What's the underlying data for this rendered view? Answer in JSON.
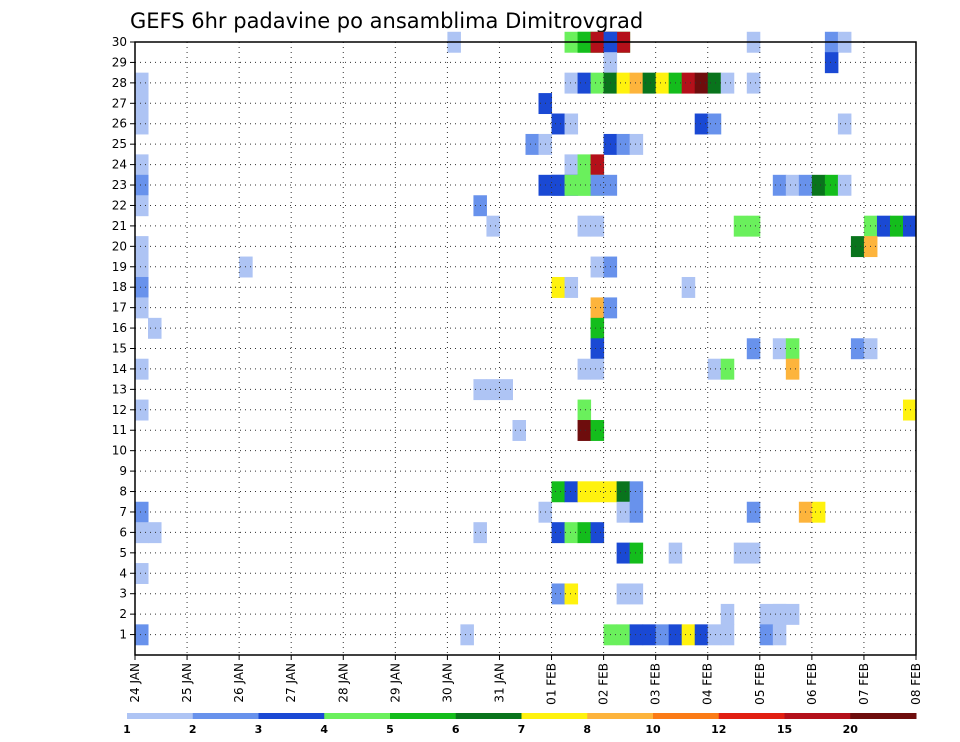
{
  "chart_data": {
    "type": "heatmap",
    "title": "GEFS 6hr padavine po ansamblima Dimitrovgrad",
    "x_tick_labels": [
      "24 JAN",
      "25 JAN",
      "26 JAN",
      "27 JAN",
      "28 JAN",
      "29 JAN",
      "30 JAN",
      "31 JAN",
      "01 FEB",
      "02 FEB",
      "03 FEB",
      "04 FEB",
      "05 FEB",
      "06 FEB",
      "07 FEB",
      "08 FEB"
    ],
    "y_tick_labels": [
      "1",
      "2",
      "3",
      "4",
      "5",
      "6",
      "7",
      "8",
      "9",
      "10",
      "11",
      "12",
      "13",
      "14",
      "15",
      "16",
      "17",
      "18",
      "19",
      "20",
      "21",
      "22",
      "23",
      "24",
      "25",
      "26",
      "27",
      "28",
      "29",
      "30"
    ],
    "x_range_days": [
      0,
      15
    ],
    "y_range": [
      0,
      30
    ],
    "grid": true,
    "colorbar": {
      "labels": [
        "1",
        "2",
        "3",
        "4",
        "5",
        "6",
        "7",
        "8",
        "10",
        "12",
        "15",
        "20"
      ],
      "colors": [
        "#aec4f4",
        "#6892ec",
        "#1a49d4",
        "#6af05c",
        "#14bd1c",
        "#09741c",
        "#fff20e",
        "#fdb43c",
        "#fb7b16",
        "#e11f12",
        "#b4101a",
        "#6e0d0d"
      ]
    },
    "cells": [
      [
        30,
        6,
        1,
        1
      ],
      [
        30,
        8.25,
        2,
        4
      ],
      [
        30,
        8.5,
        4,
        5
      ],
      [
        30,
        8.75,
        3,
        11
      ],
      [
        30,
        9,
        1,
        3
      ],
      [
        30,
        11.75,
        1,
        1
      ],
      [
        30,
        13.25,
        1,
        2
      ],
      [
        30,
        13.5,
        1,
        1
      ],
      [
        29,
        9,
        1,
        1
      ],
      [
        29,
        13.25,
        1,
        3
      ],
      [
        28,
        0,
        1,
        1
      ],
      [
        28,
        8.25,
        1,
        1
      ],
      [
        28,
        8.5,
        1,
        3
      ],
      [
        28,
        8.75,
        1,
        4
      ],
      [
        28,
        9,
        1,
        6
      ],
      [
        28,
        9.25,
        1,
        7
      ],
      [
        28,
        9.5,
        1,
        8
      ],
      [
        28,
        9.75,
        1,
        6
      ],
      [
        28,
        10,
        1,
        7
      ],
      [
        28,
        10.25,
        1,
        5
      ],
      [
        28,
        10.5,
        1,
        11
      ],
      [
        28,
        10.75,
        1,
        12
      ],
      [
        28,
        11,
        1,
        6
      ],
      [
        28,
        11.25,
        1,
        1
      ],
      [
        28,
        11.75,
        1,
        1
      ],
      [
        27,
        0,
        1,
        1
      ],
      [
        27,
        7.75,
        1,
        3
      ],
      [
        26,
        0,
        1,
        1
      ],
      [
        26,
        8,
        1,
        3
      ],
      [
        26,
        8.25,
        1,
        1
      ],
      [
        26,
        10.75,
        1,
        3
      ],
      [
        26,
        11,
        1,
        2
      ],
      [
        26,
        13.5,
        1,
        1
      ],
      [
        25,
        7.5,
        1,
        2
      ],
      [
        25,
        7.75,
        1,
        1
      ],
      [
        25,
        9,
        1,
        3
      ],
      [
        25,
        9.25,
        1,
        2
      ],
      [
        25,
        9.5,
        1,
        1
      ],
      [
        24,
        0,
        1,
        1
      ],
      [
        24,
        8.25,
        1,
        1
      ],
      [
        24,
        8.5,
        1,
        4
      ],
      [
        24,
        8.75,
        1,
        11
      ],
      [
        23,
        0,
        1,
        2
      ],
      [
        23,
        7.75,
        2,
        3
      ],
      [
        23,
        8,
        2,
        3
      ],
      [
        23,
        8.25,
        2,
        4
      ],
      [
        23,
        8.5,
        2,
        4
      ],
      [
        23,
        8.75,
        2,
        2
      ],
      [
        23,
        12.25,
        1,
        2
      ],
      [
        23,
        12.5,
        1,
        1
      ],
      [
        23,
        12.75,
        1,
        2
      ],
      [
        23,
        13,
        1,
        6
      ],
      [
        23,
        13.25,
        1,
        5
      ],
      [
        23,
        13.5,
        1,
        1
      ],
      [
        22,
        0,
        1,
        1
      ],
      [
        22,
        6.5,
        1,
        2
      ],
      [
        21,
        6.75,
        1,
        1
      ],
      [
        21,
        8.5,
        1,
        1
      ],
      [
        21,
        8.75,
        1,
        1
      ],
      [
        21,
        11.5,
        1,
        4
      ],
      [
        21,
        11.75,
        1,
        4
      ],
      [
        21,
        14,
        1,
        4
      ],
      [
        21,
        14.25,
        1,
        3
      ],
      [
        21,
        14.5,
        1,
        5
      ],
      [
        21,
        14.75,
        1,
        3
      ],
      [
        20,
        0,
        1,
        1
      ],
      [
        20,
        13.75,
        1,
        6
      ],
      [
        20,
        14,
        1,
        8
      ],
      [
        19,
        0,
        1,
        1
      ],
      [
        19,
        2,
        1,
        1
      ],
      [
        19,
        8.75,
        1,
        1
      ],
      [
        19,
        9,
        1,
        2
      ],
      [
        18,
        0,
        1,
        2
      ],
      [
        18,
        8,
        1,
        7
      ],
      [
        18,
        8.25,
        1,
        1
      ],
      [
        18,
        10.5,
        1,
        1
      ],
      [
        17,
        0,
        1,
        1
      ],
      [
        17,
        8.75,
        1,
        8
      ],
      [
        17,
        9,
        1,
        2
      ],
      [
        16,
        0.25,
        1,
        1
      ],
      [
        16,
        8.75,
        1,
        5
      ],
      [
        15,
        8.75,
        1,
        3
      ],
      [
        15,
        11.75,
        1,
        2
      ],
      [
        15,
        12.25,
        1,
        1
      ],
      [
        15,
        12.5,
        1,
        4
      ],
      [
        15,
        13.75,
        1,
        2
      ],
      [
        15,
        14,
        1,
        1
      ],
      [
        14,
        0,
        1,
        1
      ],
      [
        14,
        8.5,
        1,
        1
      ],
      [
        14,
        8.75,
        1,
        1
      ],
      [
        14,
        11,
        1,
        1
      ],
      [
        14,
        11.25,
        1,
        4
      ],
      [
        14,
        12.5,
        1,
        8
      ],
      [
        13,
        6.5,
        1,
        1
      ],
      [
        13,
        6.75,
        1,
        1
      ],
      [
        13,
        7,
        1,
        1
      ],
      [
        12,
        0,
        1,
        1
      ],
      [
        12,
        8.5,
        1,
        4
      ],
      [
        12,
        14.75,
        1,
        7
      ],
      [
        11,
        7.25,
        1,
        1
      ],
      [
        11,
        8.5,
        1,
        12
      ],
      [
        11,
        8.75,
        1,
        5
      ],
      [
        8,
        8,
        1,
        5
      ],
      [
        8,
        8.25,
        1,
        3
      ],
      [
        8,
        8.5,
        1,
        7
      ],
      [
        8,
        8.75,
        1,
        7
      ],
      [
        8,
        9,
        1,
        7
      ],
      [
        8,
        9.25,
        1,
        6
      ],
      [
        8,
        9.5,
        1,
        2
      ],
      [
        7,
        0,
        1,
        2
      ],
      [
        7,
        7.75,
        1,
        1
      ],
      [
        7,
        9.25,
        1,
        1
      ],
      [
        7,
        9.5,
        1,
        2
      ],
      [
        7,
        11.75,
        1,
        2
      ],
      [
        7,
        12.75,
        1,
        8
      ],
      [
        7,
        13,
        1,
        7
      ],
      [
        6,
        0,
        1,
        1
      ],
      [
        6,
        0.25,
        1,
        1
      ],
      [
        6,
        6.5,
        1,
        1
      ],
      [
        6,
        8,
        1,
        3
      ],
      [
        6,
        8.25,
        1,
        4
      ],
      [
        6,
        8.5,
        1,
        5
      ],
      [
        6,
        8.75,
        1,
        3
      ],
      [
        5,
        9.25,
        1,
        3
      ],
      [
        5,
        9.5,
        1,
        5
      ],
      [
        5,
        10.25,
        1,
        1
      ],
      [
        5,
        11.5,
        1,
        1
      ],
      [
        5,
        11.75,
        1,
        1
      ],
      [
        4,
        0,
        1,
        1
      ],
      [
        3,
        8,
        1,
        2
      ],
      [
        3,
        8.25,
        1,
        7
      ],
      [
        3,
        9.25,
        1,
        1
      ],
      [
        3,
        9.5,
        1,
        1
      ],
      [
        2,
        11.25,
        1,
        1
      ],
      [
        2,
        12,
        2,
        1
      ],
      [
        2,
        12.25,
        2,
        1
      ],
      [
        1,
        0,
        1,
        2
      ],
      [
        1,
        6.25,
        1,
        1
      ],
      [
        1,
        9,
        1,
        4
      ],
      [
        1,
        9.25,
        1,
        4
      ],
      [
        1,
        9.5,
        1,
        3
      ],
      [
        1,
        9.75,
        1,
        3
      ],
      [
        1,
        10,
        1,
        2
      ],
      [
        1,
        10.25,
        1,
        3
      ],
      [
        1,
        10.5,
        1,
        7
      ],
      [
        1,
        10.75,
        1,
        3
      ],
      [
        1,
        11,
        1,
        1
      ],
      [
        1,
        11.25,
        1,
        1
      ],
      [
        1,
        12,
        1,
        2
      ],
      [
        1,
        12.25,
        1,
        1
      ]
    ]
  }
}
